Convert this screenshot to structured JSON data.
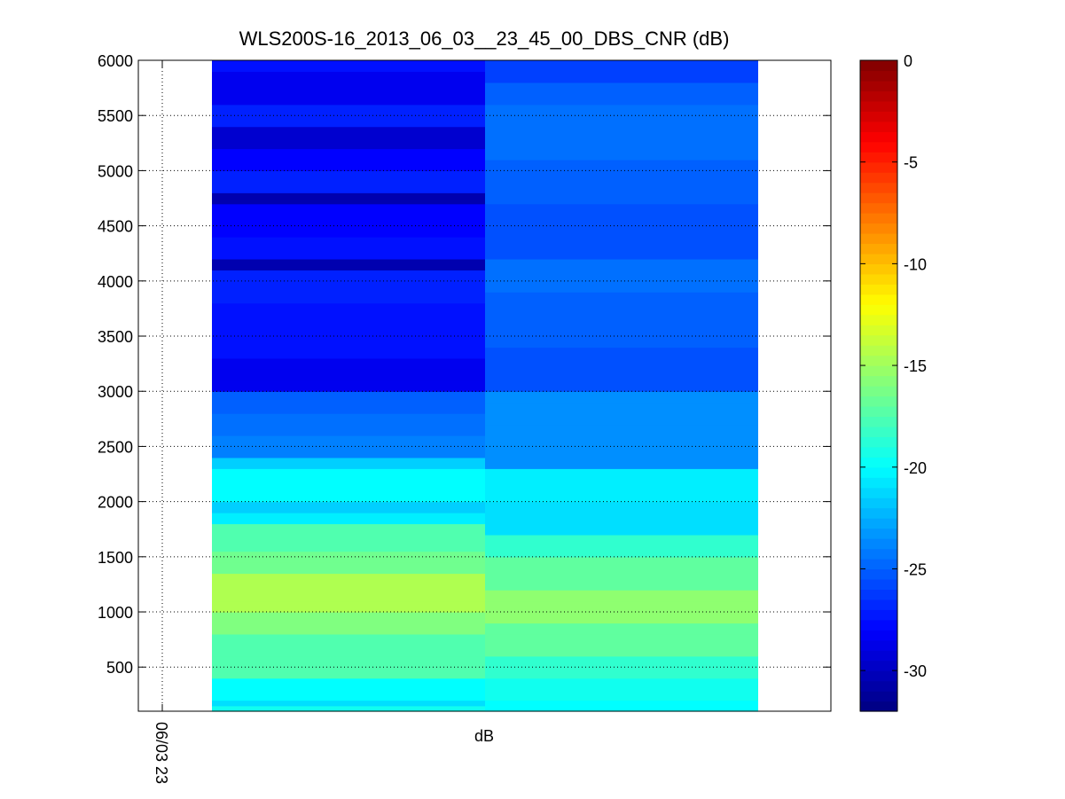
{
  "chart_data": {
    "type": "heatmap",
    "title": "WLS200S-16_2013_06_03__23_45_00_DBS_CNR (dB)",
    "xlabel": "dB",
    "ylabel": "",
    "x_tick_labels": [
      "06/03 23"
    ],
    "ylim": [
      100,
      6000
    ],
    "y_ticks": [
      500,
      1000,
      1500,
      2000,
      2500,
      3000,
      3500,
      4000,
      4500,
      5000,
      5500,
      6000
    ],
    "grid": true,
    "colormap": "jet",
    "colorbar": {
      "range": [
        -32,
        0
      ],
      "ticks": [
        0,
        -5,
        -10,
        -15,
        -20,
        -25,
        -30
      ]
    },
    "row_height_m": 100,
    "columns": [
      {
        "bands": [
          {
            "from": 100,
            "to": 150,
            "value": -19.5
          },
          {
            "from": 150,
            "to": 200,
            "value": -21
          },
          {
            "from": 200,
            "to": 400,
            "value": -20
          },
          {
            "from": 400,
            "to": 800,
            "value": -17.5
          },
          {
            "from": 800,
            "to": 1000,
            "value": -16
          },
          {
            "from": 1000,
            "to": 1350,
            "value": -14.5
          },
          {
            "from": 1350,
            "to": 1550,
            "value": -16.5
          },
          {
            "from": 1550,
            "to": 1800,
            "value": -17.5
          },
          {
            "from": 1800,
            "to": 1900,
            "value": -20.5
          },
          {
            "from": 1900,
            "to": 2000,
            "value": -21.5
          },
          {
            "from": 2000,
            "to": 2300,
            "value": -20
          },
          {
            "from": 2300,
            "to": 2400,
            "value": -21.5
          },
          {
            "from": 2400,
            "to": 2600,
            "value": -24
          },
          {
            "from": 2600,
            "to": 2800,
            "value": -24.5
          },
          {
            "from": 2800,
            "to": 3000,
            "value": -25
          },
          {
            "from": 3000,
            "to": 3300,
            "value": -28.5
          },
          {
            "from": 3300,
            "to": 3800,
            "value": -27.5
          },
          {
            "from": 3800,
            "to": 4100,
            "value": -27
          },
          {
            "from": 4100,
            "to": 4200,
            "value": -30.5
          },
          {
            "from": 4200,
            "to": 4400,
            "value": -27.5
          },
          {
            "from": 4400,
            "to": 4700,
            "value": -28
          },
          {
            "from": 4700,
            "to": 4800,
            "value": -30.5
          },
          {
            "from": 4800,
            "to": 5000,
            "value": -27
          },
          {
            "from": 5000,
            "to": 5200,
            "value": -28
          },
          {
            "from": 5200,
            "to": 5400,
            "value": -29.5
          },
          {
            "from": 5400,
            "to": 5600,
            "value": -27
          },
          {
            "from": 5600,
            "to": 5900,
            "value": -28.5
          },
          {
            "from": 5900,
            "to": 6000,
            "value": -27.5
          }
        ]
      },
      {
        "bands": [
          {
            "from": 100,
            "to": 200,
            "value": -20
          },
          {
            "from": 200,
            "to": 400,
            "value": -19.5
          },
          {
            "from": 400,
            "to": 600,
            "value": -18.5
          },
          {
            "from": 600,
            "to": 900,
            "value": -17
          },
          {
            "from": 900,
            "to": 1200,
            "value": -15.5
          },
          {
            "from": 1200,
            "to": 1500,
            "value": -17
          },
          {
            "from": 1500,
            "to": 1700,
            "value": -18.5
          },
          {
            "from": 1700,
            "to": 2000,
            "value": -21
          },
          {
            "from": 2000,
            "to": 2300,
            "value": -20.5
          },
          {
            "from": 2300,
            "to": 3000,
            "value": -23.5
          },
          {
            "from": 3000,
            "to": 3400,
            "value": -25.5
          },
          {
            "from": 3400,
            "to": 3900,
            "value": -25
          },
          {
            "from": 3900,
            "to": 4200,
            "value": -24.5
          },
          {
            "from": 4200,
            "to": 4700,
            "value": -25.5
          },
          {
            "from": 4700,
            "to": 5100,
            "value": -25
          },
          {
            "from": 5100,
            "to": 5600,
            "value": -24.5
          },
          {
            "from": 5600,
            "to": 5800,
            "value": -25
          },
          {
            "from": 5800,
            "to": 6000,
            "value": -26
          }
        ]
      }
    ]
  }
}
